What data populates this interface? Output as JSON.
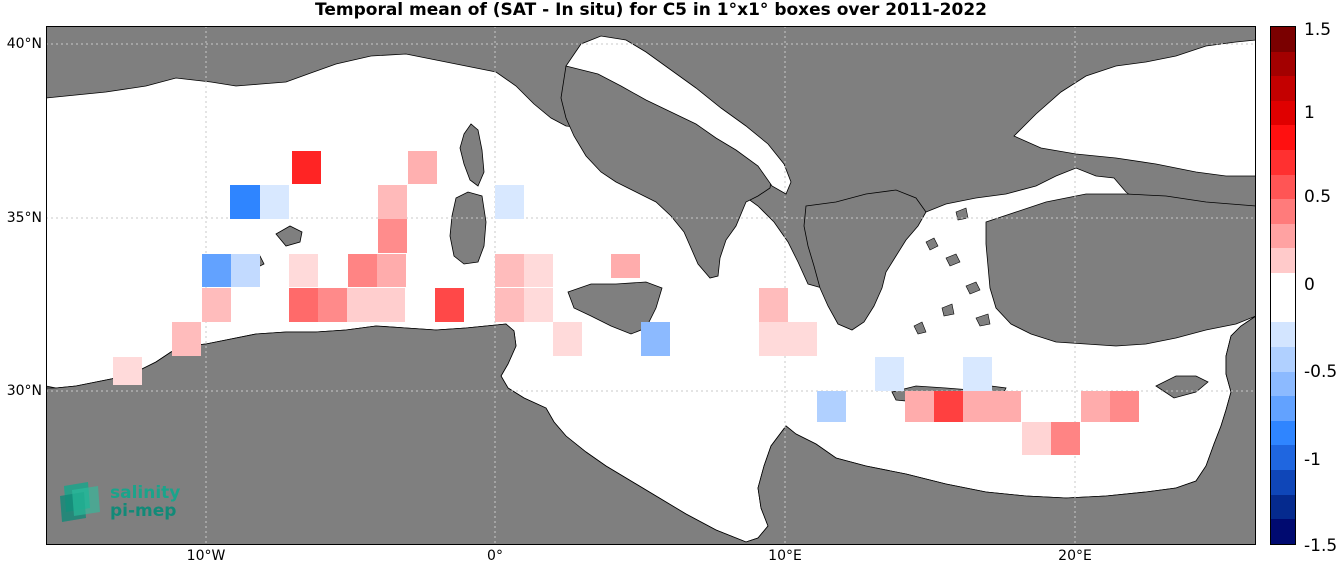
{
  "title": "Temporal mean of (SAT - In situ) for C5 in 1°x1° boxes over 2011-2022",
  "axes": {
    "y_ticks": [
      "40°N",
      "35°N",
      "30°N"
    ],
    "x_ticks": [
      "10°W",
      "0°",
      "10°E",
      "20°E"
    ]
  },
  "colorbar": {
    "ticks": [
      "1.5",
      "1",
      "0.5",
      "0",
      "-0.5",
      "-1",
      "-1.5"
    ],
    "range": [
      -1.5,
      1.5
    ],
    "colors_top_to_bottom": [
      "#7a0000",
      "#a30000",
      "#c40000",
      "#e00000",
      "#ff1010",
      "#ff3030",
      "#ff5555",
      "#ff7b7b",
      "#ffa2a2",
      "#ffcaca",
      "#ffffff",
      "#ffffff",
      "#d3e5ff",
      "#b0d0ff",
      "#8cbaff",
      "#62a2ff",
      "#2f85ff",
      "#1f66e0",
      "#0f46b8",
      "#052a8e",
      "#000a70"
    ]
  },
  "logo": {
    "line1": "salinity",
    "line2": "pi-mep"
  },
  "colors": {
    "land": "#7f7f7f",
    "sea": "#ffffff",
    "grid": "#cccccc"
  }
}
